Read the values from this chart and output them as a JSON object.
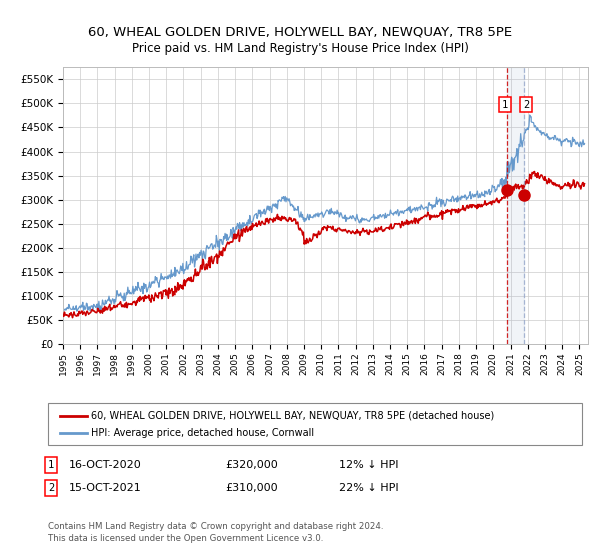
{
  "title": "60, WHEAL GOLDEN DRIVE, HOLYWELL BAY, NEWQUAY, TR8 5PE",
  "subtitle": "Price paid vs. HM Land Registry's House Price Index (HPI)",
  "legend_line1": "60, WHEAL GOLDEN DRIVE, HOLYWELL BAY, NEWQUAY, TR8 5PE (detached house)",
  "legend_line2": "HPI: Average price, detached house, Cornwall",
  "annotation1_date": "16-OCT-2020",
  "annotation1_price": "£320,000",
  "annotation1_hpi": "12% ↓ HPI",
  "annotation2_date": "15-OCT-2021",
  "annotation2_price": "£310,000",
  "annotation2_hpi": "22% ↓ HPI",
  "footnote": "Contains HM Land Registry data © Crown copyright and database right 2024.\nThis data is licensed under the Open Government Licence v3.0.",
  "hpi_color": "#6699cc",
  "price_color": "#cc0000",
  "marker_color": "#cc0000",
  "vline1_color": "#cc0000",
  "vline2_color": "#99aacc",
  "background_color": "#ffffff",
  "grid_color": "#cccccc",
  "ylim": [
    0,
    575000
  ],
  "yticks": [
    0,
    50000,
    100000,
    150000,
    200000,
    250000,
    300000,
    350000,
    400000,
    450000,
    500000,
    550000
  ],
  "xlim_start": 1995.0,
  "xlim_end": 2025.5,
  "sale1_x": 2020.79,
  "sale1_y": 320000,
  "sale2_x": 2021.79,
  "sale2_y": 310000
}
